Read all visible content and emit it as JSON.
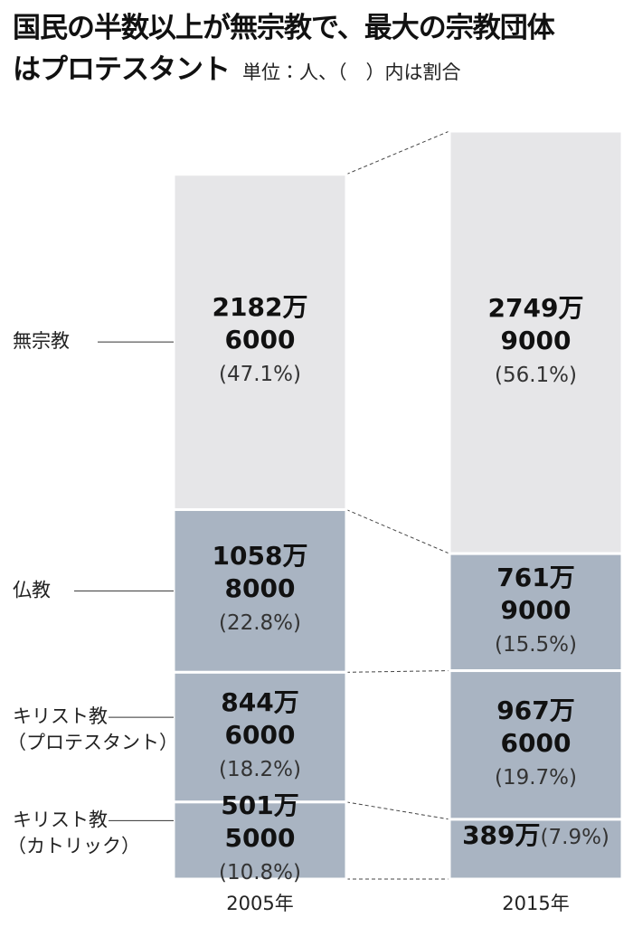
{
  "chart_data": {
    "type": "bar",
    "stacked": true,
    "title": "国民の半数以上が無宗教で、最大の宗教団体はプロテスタント",
    "subtitle": "単位：人、（　）内は割合",
    "categories": [
      "2005年",
      "2015年"
    ],
    "series": [
      {
        "name": "無宗教",
        "color": "#e6e6e8",
        "values": [
          21826000,
          27499000
        ],
        "value_labels": [
          "2182万6000",
          "2749万9000"
        ],
        "shares": [
          47.1,
          56.1
        ],
        "share_labels": [
          "(47.1%)",
          "(56.1%)"
        ]
      },
      {
        "name": "仏教",
        "color": "#a9b4c2",
        "values": [
          10588000,
          7619000
        ],
        "value_labels": [
          "1058万8000",
          "761万9000"
        ],
        "shares": [
          22.8,
          15.5
        ],
        "share_labels": [
          "(22.8%)",
          "(15.5%)"
        ]
      },
      {
        "name": "キリスト教（プロテスタント）",
        "color": "#a9b4c2",
        "values": [
          8446000,
          9676000
        ],
        "value_labels": [
          "844万6000",
          "967万6000"
        ],
        "shares": [
          18.2,
          19.7
        ],
        "share_labels": [
          "(18.2%)",
          "(19.7%)"
        ]
      },
      {
        "name": "キリスト教（カトリック）",
        "color": "#a9b4c2",
        "values": [
          5015000,
          3890000
        ],
        "value_labels": [
          "501万5000",
          "389万"
        ],
        "shares": [
          10.8,
          7.9
        ],
        "share_labels": [
          "(10.8%)",
          "(7.9%)"
        ]
      }
    ]
  }
}
